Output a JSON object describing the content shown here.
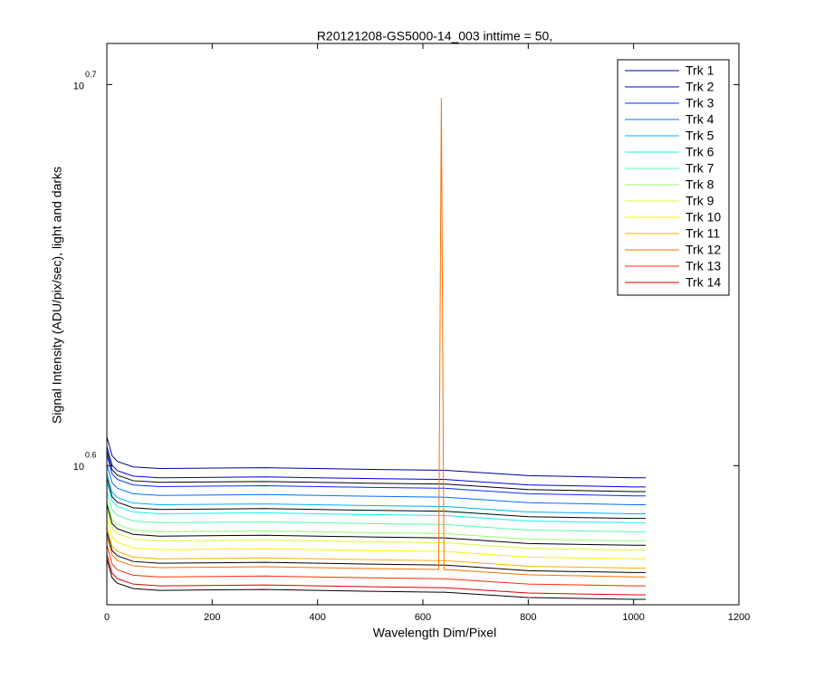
{
  "chart_data": {
    "type": "line",
    "title": "R20121208-GS5000-14_003 inttime = 50,",
    "xlabel": "Wavelength Dim/Pixel",
    "ylabel": "Signal Intensity (ADU/pix/sec), light and darks",
    "x": [
      0,
      10,
      20,
      50,
      100,
      300,
      500,
      630,
      635,
      640,
      800,
      1000,
      1023
    ],
    "xlim": [
      0,
      1200
    ],
    "xticks": [
      0,
      200,
      400,
      600,
      800,
      1000,
      1200
    ],
    "ylim": [
      3.66,
      5.138
    ],
    "ylog": true,
    "yticks": [
      {
        "value": 3.981,
        "label": "10",
        "exponent": "0.6"
      },
      {
        "value": 5.012,
        "label": "10",
        "exponent": "0.7"
      }
    ],
    "legend": "northeast",
    "series": [
      {
        "name": "Trk 1",
        "color": "#00008f",
        "values": [
          4.051,
          4.005,
          3.991,
          3.978,
          3.974,
          3.976,
          3.972,
          3.97,
          3.97,
          3.97,
          3.957,
          3.952,
          3.952
        ]
      },
      {
        "color": "#000000",
        "values": [
          4.017,
          3.971,
          3.958,
          3.945,
          3.941,
          3.943,
          3.939,
          3.937,
          3.937,
          3.937,
          3.924,
          3.919,
          3.919
        ]
      },
      {
        "name": "Trk 2",
        "color": "#0000df",
        "values": [
          4.028,
          3.982,
          3.969,
          3.956,
          3.952,
          3.954,
          3.95,
          3.948,
          3.948,
          3.948,
          3.935,
          3.93,
          3.93
        ]
      },
      {
        "name": "Trk 3",
        "color": "#0030ff",
        "values": [
          4.007,
          3.961,
          3.948,
          3.935,
          3.931,
          3.933,
          3.929,
          3.927,
          3.927,
          3.927,
          3.914,
          3.909,
          3.909
        ]
      },
      {
        "name": "Trk 4",
        "color": "#0070ff",
        "values": [
          3.985,
          3.94,
          3.927,
          3.914,
          3.91,
          3.912,
          3.908,
          3.906,
          3.906,
          3.906,
          3.893,
          3.888,
          3.888
        ]
      },
      {
        "color": "#000000",
        "values": [
          3.952,
          3.907,
          3.894,
          3.881,
          3.877,
          3.879,
          3.875,
          3.873,
          3.873,
          3.873,
          3.86,
          3.856,
          3.856
        ]
      },
      {
        "name": "Trk 5",
        "color": "#00b0ff",
        "values": [
          3.963,
          3.918,
          3.905,
          3.892,
          3.888,
          3.89,
          3.886,
          3.884,
          3.884,
          3.884,
          3.871,
          3.867,
          3.867
        ]
      },
      {
        "name": "Trk 6",
        "color": "#10f0ef",
        "values": [
          3.942,
          3.897,
          3.884,
          3.871,
          3.867,
          3.869,
          3.865,
          3.863,
          3.863,
          3.863,
          3.85,
          3.846,
          3.846
        ]
      },
      {
        "name": "Trk 7",
        "color": "#50ffaf",
        "values": [
          3.92,
          3.876,
          3.863,
          3.85,
          3.846,
          3.848,
          3.844,
          3.842,
          3.842,
          3.842,
          3.829,
          3.825,
          3.825
        ]
      },
      {
        "color": "#000000",
        "values": [
          3.889,
          3.844,
          3.832,
          3.819,
          3.815,
          3.817,
          3.813,
          3.811,
          3.811,
          3.811,
          3.798,
          3.794,
          3.794
        ]
      },
      {
        "name": "Trk 8",
        "color": "#90ff6f",
        "values": [
          3.899,
          3.854,
          3.842,
          3.829,
          3.825,
          3.827,
          3.823,
          3.821,
          3.821,
          3.821,
          3.808,
          3.804,
          3.804
        ]
      },
      {
        "name": "Trk 9",
        "color": "#cfff30",
        "values": [
          3.877,
          3.833,
          3.821,
          3.808,
          3.804,
          3.806,
          3.802,
          3.8,
          3.8,
          3.8,
          3.787,
          3.783,
          3.783
        ]
      },
      {
        "name": "Trk 10",
        "color": "#ffef00",
        "values": [
          3.857,
          3.813,
          3.801,
          3.788,
          3.784,
          3.786,
          3.782,
          3.78,
          3.78,
          3.78,
          3.767,
          3.763,
          3.763
        ]
      },
      {
        "color": "#000000",
        "values": [
          3.825,
          3.782,
          3.77,
          3.757,
          3.753,
          3.755,
          3.751,
          3.749,
          3.749,
          3.749,
          3.736,
          3.732,
          3.732
        ]
      },
      {
        "name": "Trk 11",
        "color": "#ffaf00",
        "values": [
          3.836,
          3.792,
          3.78,
          3.767,
          3.763,
          3.765,
          3.761,
          3.759,
          3.759,
          3.759,
          3.746,
          3.742,
          3.742
        ]
      },
      {
        "name": "Trk 12",
        "color": "#ff7000",
        "values": [
          3.815,
          3.772,
          3.759,
          3.747,
          3.743,
          3.745,
          3.741,
          3.739,
          4.971,
          3.739,
          3.727,
          3.722,
          3.722
        ]
      },
      {
        "name": "Trk 13",
        "color": "#ff3000",
        "values": [
          3.794,
          3.751,
          3.738,
          3.726,
          3.722,
          3.724,
          3.72,
          3.718,
          3.718,
          3.718,
          3.706,
          3.702,
          3.702
        ]
      },
      {
        "color": "#000000",
        "values": [
          3.763,
          3.72,
          3.708,
          3.696,
          3.692,
          3.694,
          3.69,
          3.688,
          3.688,
          3.688,
          3.676,
          3.672,
          3.672
        ]
      },
      {
        "name": "Trk 14",
        "color": "#e00000",
        "values": [
          3.773,
          3.731,
          3.718,
          3.706,
          3.702,
          3.704,
          3.7,
          3.698,
          3.698,
          3.698,
          3.686,
          3.682,
          3.682
        ]
      }
    ]
  }
}
